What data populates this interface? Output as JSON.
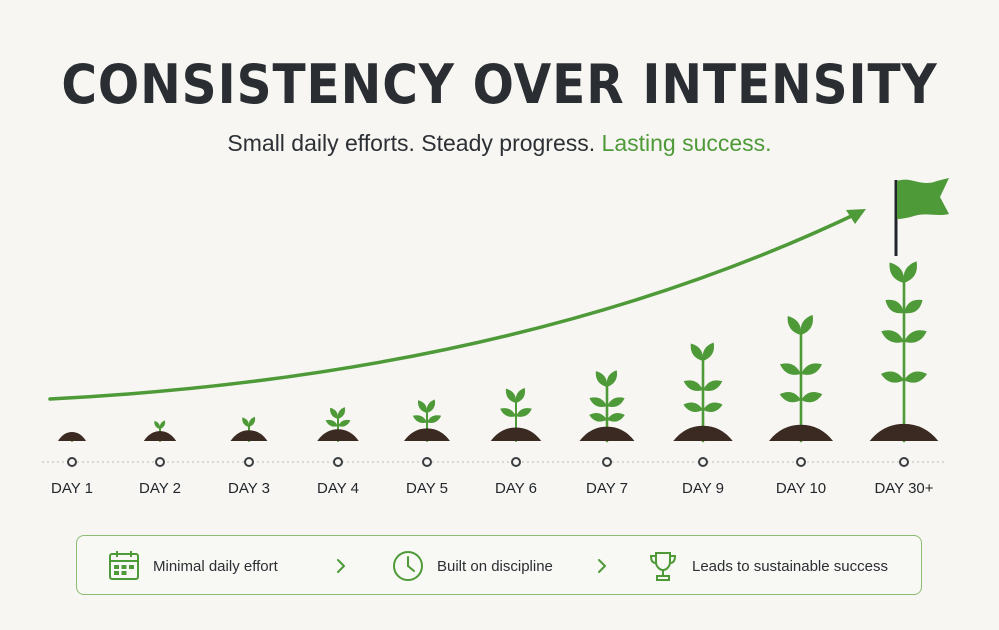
{
  "header": {
    "title": "CONSISTENCY OVER INTENSITY",
    "subtitle_part1": "Small daily efforts. Steady progress. ",
    "subtitle_accent": "Lasting success."
  },
  "colors": {
    "accent_green": "#4e9a38",
    "soil_brown": "#3b2a21",
    "text_dark": "#2b2f33",
    "background": "#f7f6f3"
  },
  "timeline": {
    "stages": [
      {
        "label": "DAY 1",
        "growth": 0
      },
      {
        "label": "DAY 2",
        "growth": 1
      },
      {
        "label": "DAY 3",
        "growth": 2
      },
      {
        "label": "DAY 4",
        "growth": 3
      },
      {
        "label": "DAY 5",
        "growth": 4
      },
      {
        "label": "DAY 6",
        "growth": 5
      },
      {
        "label": "DAY 7",
        "growth": 6
      },
      {
        "label": "DAY 9",
        "growth": 7
      },
      {
        "label": "DAY 10",
        "growth": 8
      },
      {
        "label": "DAY 30+",
        "growth": 9
      }
    ],
    "goal_icon": "flag-icon",
    "trend_icon": "rising-arrow"
  },
  "legend": {
    "items": [
      {
        "icon": "calendar-icon",
        "label": "Minimal daily effort"
      },
      {
        "icon": "clock-icon",
        "label": "Built on discipline"
      },
      {
        "icon": "trophy-icon",
        "label": "Leads to sustainable success"
      }
    ],
    "separator_icon": "chevron-right-icon"
  }
}
